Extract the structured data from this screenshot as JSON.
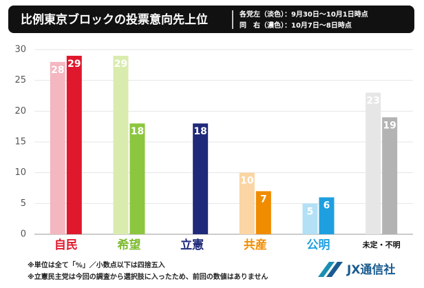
{
  "chart_data": {
    "type": "bar",
    "title": "比例東京ブロックの投票意向先上位",
    "categories": [
      "自民",
      "希望",
      "立憲",
      "共産",
      "公明",
      "未定・不明"
    ],
    "label_colors": [
      "#e0182d",
      "#7dbb2f",
      "#1f2a7a",
      "#f08c00",
      "#1e9fdf",
      "#111111"
    ],
    "series": [
      {
        "name": "各党左（淡色）：9月30日～10月1日時点",
        "colors": [
          "#f4b6c0",
          "#d9ecae",
          null,
          "#fbd5a3",
          "#b3e0f5",
          "#e6e6e6"
        ],
        "values": [
          28,
          29,
          null,
          10,
          5,
          23
        ]
      },
      {
        "name": "同　右（濃色）：10月7日～8日時点",
        "colors": [
          "#e0182d",
          "#8cc63f",
          "#1f2a7a",
          "#f08c00",
          "#1e9fdf",
          "#b3b3b3"
        ],
        "values": [
          29,
          18,
          18,
          7,
          6,
          19
        ]
      }
    ],
    "ylim": [
      0,
      30
    ],
    "yticks": [
      0,
      5,
      10,
      15,
      20,
      25,
      30
    ],
    "grid": true
  },
  "footnotes": [
    "※単位は全て「%」／小数点以下は四捨五入",
    "※立憲民主党は今回の調査から選択肢に入ったため、前回の数値はありません"
  ],
  "logo": "JX通信社"
}
